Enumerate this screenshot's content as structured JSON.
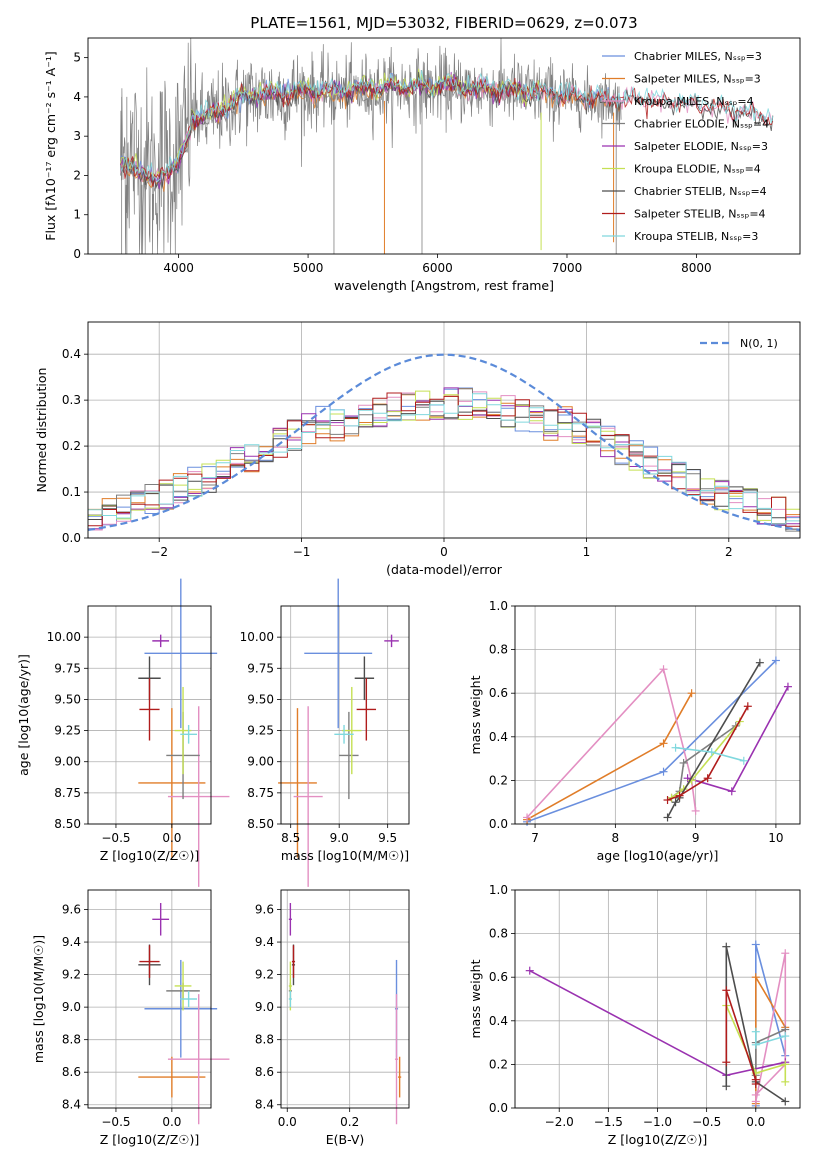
{
  "colors": {
    "Chabrier MILES": "#6a8fde",
    "Salpeter MILES": "#e07d29",
    "Kroupa MILES": "#e38fc2",
    "Chabrier ELODIE": "#7f7f7f",
    "Salpeter ELODIE": "#9a32b0",
    "Kroupa ELODIE": "#c5e054",
    "Chabrier STELIB": "#4d4d4d",
    "Salpeter STELIB": "#b01c1c",
    "Kroupa STELIB": "#80d8de",
    "data": "#808080",
    "normal": "#5b8bd9"
  },
  "chart_data": [
    {
      "id": "spectrum",
      "type": "line",
      "title": "PLATE=1561, MJD=53032, FIBERID=0629, z=0.073",
      "xlabel": "wavelength [Angstrom, rest frame]",
      "ylabel": "Flux [fλ10⁻¹⁷ erg cm⁻² s⁻¹ A⁻¹]",
      "xlim": [
        3300,
        8800
      ],
      "ylim": [
        0,
        5.5
      ],
      "xticks": [
        "4000",
        "5000",
        "6000",
        "7000",
        "8000"
      ],
      "yticks": [
        "0",
        "1",
        "2",
        "3",
        "4",
        "5"
      ],
      "continuum_knots": {
        "x": [
          3550,
          3650,
          3720,
          3800,
          3900,
          4000,
          4100,
          4200,
          4300,
          4400,
          4500,
          4700,
          5000,
          5200,
          5500,
          5800,
          6000,
          6300,
          6600,
          6900,
          7200,
          7500,
          7800,
          8100,
          8400,
          8600
        ],
        "y": [
          2.4,
          2.5,
          2.2,
          2.0,
          2.3,
          2.4,
          3.5,
          3.45,
          3.6,
          3.8,
          4.0,
          4.05,
          4.15,
          4.1,
          4.2,
          4.25,
          4.25,
          4.2,
          4.15,
          4.05,
          3.95,
          3.9,
          3.85,
          3.75,
          3.55,
          3.4
        ]
      },
      "legend": [
        "Chabrier MILES, N_SSP=3",
        "Salpeter MILES, N_SSP=3",
        "Kroupa MILES, N_SSP=4",
        "Chabrier ELODIE, N_SSP=4",
        "Salpeter ELODIE, N_SSP=3",
        "Kroupa ELODIE, N_SSP=4",
        "Chabrier STELIB, N_SSP=4",
        "Salpeter STELIB, N_SSP=4",
        "Kroupa STELIB, N_SSP=3"
      ]
    },
    {
      "id": "residuals",
      "type": "histogram",
      "xlabel": "(data-model)/error",
      "ylabel": "Normed distribution",
      "xlim": [
        -2.5,
        2.5
      ],
      "ylim": [
        0,
        0.47
      ],
      "xticks": [
        "−2",
        "−1",
        "0",
        "1",
        "2"
      ],
      "yticks": [
        "0.0",
        "0.1",
        "0.2",
        "0.3",
        "0.4"
      ],
      "bin_width": 0.1,
      "legend": "N(0, 1)"
    },
    {
      "id": "age-vs-Z",
      "type": "errorbar",
      "xlabel": "Z [log10(Z/Z☉)]",
      "ylabel": "age  [log10(age/yr)]",
      "xlim": [
        -0.75,
        0.35
      ],
      "ylim": [
        8.5,
        10.25
      ],
      "xticks": [
        "−0.5",
        "0.0"
      ],
      "yticks": [
        "8.50",
        "8.75",
        "9.00",
        "9.25",
        "9.50",
        "9.75",
        "10.00"
      ]
    },
    {
      "id": "age-vs-mass",
      "type": "errorbar",
      "xlabel": "mass [log10(M/M☉)]",
      "ylabel": "",
      "xlim": [
        8.4,
        9.72
      ],
      "ylim": [
        8.5,
        10.25
      ],
      "xticks": [
        "8.5",
        "9.0",
        "9.5"
      ],
      "yticks": [
        "8.50",
        "8.75",
        "9.00",
        "9.25",
        "9.50",
        "9.75",
        "10.00"
      ]
    },
    {
      "id": "weight-vs-age",
      "type": "line",
      "xlabel": "age  [log10(age/yr)]",
      "ylabel": "mass weight",
      "xlim": [
        6.75,
        10.3
      ],
      "ylim": [
        0,
        1
      ],
      "xticks": [
        "7",
        "8",
        "9",
        "10"
      ],
      "yticks": [
        "0.0",
        "0.2",
        "0.4",
        "0.6",
        "0.8",
        "1.0"
      ],
      "series": [
        {
          "name": "Chabrier MILES",
          "x": [
            6.9,
            8.6,
            10.0
          ],
          "y": [
            0.01,
            0.24,
            0.75
          ]
        },
        {
          "name": "Salpeter MILES",
          "x": [
            6.9,
            8.6,
            8.95
          ],
          "y": [
            0.02,
            0.37,
            0.6
          ]
        },
        {
          "name": "Kroupa MILES",
          "x": [
            6.9,
            8.6,
            8.95,
            9.0
          ],
          "y": [
            0.03,
            0.71,
            0.2,
            0.06
          ]
        },
        {
          "name": "Chabrier ELODIE",
          "x": [
            8.7,
            8.8,
            8.85,
            9.5
          ],
          "y": [
            0.12,
            0.15,
            0.28,
            0.45
          ]
        },
        {
          "name": "Salpeter ELODIE",
          "x": [
            8.9,
            9.45,
            10.15
          ],
          "y": [
            0.21,
            0.15,
            0.63
          ]
        },
        {
          "name": "Kroupa ELODIE",
          "x": [
            8.7,
            8.85,
            8.95,
            9.55
          ],
          "y": [
            0.12,
            0.16,
            0.2,
            0.47
          ]
        },
        {
          "name": "Chabrier STELIB",
          "x": [
            8.65,
            8.75,
            8.8,
            9.8
          ],
          "y": [
            0.03,
            0.1,
            0.12,
            0.74
          ]
        },
        {
          "name": "Salpeter STELIB",
          "x": [
            8.65,
            8.8,
            9.15,
            9.65
          ],
          "y": [
            0.11,
            0.13,
            0.21,
            0.54
          ]
        },
        {
          "name": "Kroupa STELIB",
          "x": [
            8.75,
            9.2,
            9.6
          ],
          "y": [
            0.35,
            0.33,
            0.29
          ]
        }
      ]
    },
    {
      "id": "mass-vs-Z",
      "type": "errorbar",
      "xlabel": "Z [log10(Z/Z☉)]",
      "ylabel": "mass [log10(M/M☉)]",
      "xlim": [
        -0.75,
        0.35
      ],
      "ylim": [
        8.38,
        9.72
      ],
      "xticks": [
        "−0.5",
        "0.0"
      ],
      "yticks": [
        "8.4",
        "8.6",
        "8.8",
        "9.0",
        "9.2",
        "9.4",
        "9.6"
      ]
    },
    {
      "id": "mass-vs-EBV",
      "type": "errorbar",
      "xlabel": "E(B-V)",
      "ylabel": "",
      "xlim": [
        -0.02,
        0.39
      ],
      "ylim": [
        8.38,
        9.72
      ],
      "xticks": [
        "0.0",
        "0.2"
      ],
      "yticks": [
        "8.4",
        "8.6",
        "8.8",
        "9.0",
        "9.2",
        "9.4",
        "9.6"
      ]
    },
    {
      "id": "weight-vs-Z",
      "type": "line",
      "xlabel": "Z [log10(Z/Z☉)]",
      "ylabel": "mass weight",
      "xlim": [
        -2.45,
        0.45
      ],
      "ylim": [
        0,
        1
      ],
      "xticks": [
        "−2.0",
        "−1.5",
        "−1.0",
        "−0.5",
        "0.0"
      ],
      "yticks": [
        "0.0",
        "0.2",
        "0.4",
        "0.6",
        "0.8",
        "1.0"
      ],
      "series": [
        {
          "name": "Chabrier MILES",
          "x": [
            0.0,
            0.0,
            0.3
          ],
          "y": [
            0.01,
            0.75,
            0.24
          ]
        },
        {
          "name": "Salpeter MILES",
          "x": [
            0.0,
            0.0,
            0.3
          ],
          "y": [
            0.02,
            0.6,
            0.37
          ]
        },
        {
          "name": "Kroupa MILES",
          "x": [
            0.0,
            0.3,
            0.3,
            0.0
          ],
          "y": [
            0.03,
            0.71,
            0.2,
            0.06
          ]
        },
        {
          "name": "Chabrier ELODIE",
          "x": [
            0.0,
            0.0,
            0.3
          ],
          "y": [
            0.15,
            0.3,
            0.36
          ]
        },
        {
          "name": "Salpeter ELODIE",
          "x": [
            -2.3,
            -0.3,
            0.3
          ],
          "y": [
            0.63,
            0.15,
            0.21
          ]
        },
        {
          "name": "Kroupa ELODIE",
          "x": [
            -0.3,
            0.0,
            0.3,
            0.3
          ],
          "y": [
            0.47,
            0.16,
            0.2,
            0.12
          ]
        },
        {
          "name": "Chabrier STELIB",
          "x": [
            -0.3,
            -0.3,
            0.0,
            0.3
          ],
          "y": [
            0.1,
            0.74,
            0.12,
            0.03
          ]
        },
        {
          "name": "Salpeter STELIB",
          "x": [
            -0.3,
            -0.3,
            0.0,
            0.0
          ],
          "y": [
            0.21,
            0.54,
            0.13,
            0.11
          ]
        },
        {
          "name": "Kroupa STELIB",
          "x": [
            0.0,
            0.0,
            0.3
          ],
          "y": [
            0.35,
            0.29,
            0.33
          ]
        }
      ]
    }
  ]
}
